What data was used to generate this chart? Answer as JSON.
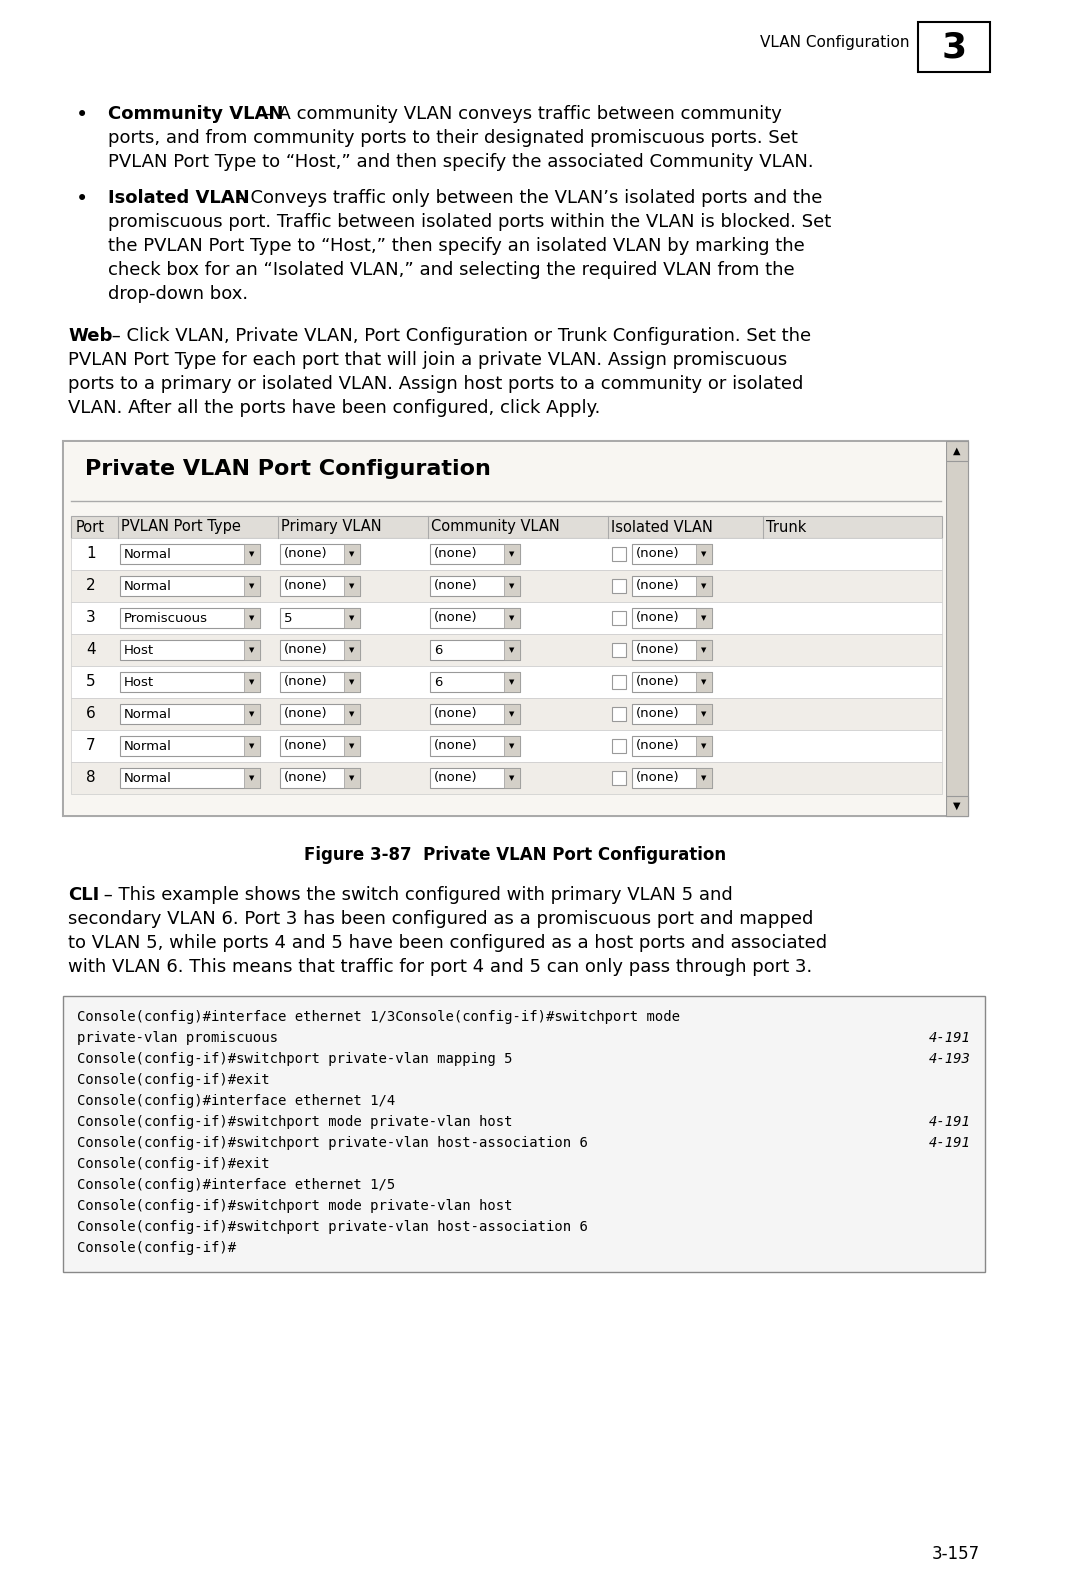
{
  "bg_color": "#ffffff",
  "header_text": "VLAN Configuration",
  "header_num": "3",
  "bullet1_bold": "Community VLAN",
  "bullet1_rest": " – A community VLAN conveys traffic between community",
  "bullet1_line2": "ports, and from community ports to their designated promiscuous ports. Set",
  "bullet1_line3": "PVLAN Port Type to “Host,” and then specify the associated Community VLAN.",
  "bullet2_bold": "Isolated VLAN",
  "bullet2_rest": " – Conveys traffic only between the VLAN’s isolated ports and the",
  "bullet2_line2": "promiscuous port. Traffic between isolated ports within the VLAN is blocked. Set",
  "bullet2_line3": "the PVLAN Port Type to “Host,” then specify an isolated VLAN by marking the",
  "bullet2_line4": "check box for an “Isolated VLAN,” and selecting the required VLAN from the",
  "bullet2_line5": "drop-down box.",
  "web_bold": "Web",
  "web_line1": " – Click VLAN, Private VLAN, Port Configuration or Trunk Configuration. Set the",
  "web_line2": "PVLAN Port Type for each port that will join a private VLAN. Assign promiscuous",
  "web_line3": "ports to a primary or isolated VLAN. Assign host ports to a community or isolated",
  "web_line4": "VLAN. After all the ports have been configured, click Apply.",
  "table_title": "Private VLAN Port Configuration",
  "table_headers": [
    "Port",
    "PVLAN Port Type",
    "Primary VLAN",
    "Community VLAN",
    "Isolated VLAN",
    "Trunk"
  ],
  "table_rows": [
    {
      "port": "1",
      "pvlan_type": "Normal",
      "primary": "(none)",
      "community": "(none)",
      "isolated": "(none)"
    },
    {
      "port": "2",
      "pvlan_type": "Normal",
      "primary": "(none)",
      "community": "(none)",
      "isolated": "(none)"
    },
    {
      "port": "3",
      "pvlan_type": "Promiscuous",
      "primary": "5",
      "community": "(none)",
      "isolated": "(none)"
    },
    {
      "port": "4",
      "pvlan_type": "Host",
      "primary": "(none)",
      "community": "6",
      "isolated": "(none)"
    },
    {
      "port": "5",
      "pvlan_type": "Host",
      "primary": "(none)",
      "community": "6",
      "isolated": "(none)"
    },
    {
      "port": "6",
      "pvlan_type": "Normal",
      "primary": "(none)",
      "community": "(none)",
      "isolated": "(none)"
    },
    {
      "port": "7",
      "pvlan_type": "Normal",
      "primary": "(none)",
      "community": "(none)",
      "isolated": "(none)"
    },
    {
      "port": "8",
      "pvlan_type": "Normal",
      "primary": "(none)",
      "community": "(none)",
      "isolated": "(none)"
    }
  ],
  "fig_caption": "Figure 3-87  Private VLAN Port Configuration",
  "cli_bold": "CLI",
  "cli_line1": " – This example shows the switch configured with primary VLAN 5 and",
  "cli_line2": "secondary VLAN 6. Port 3 has been configured as a promiscuous port and mapped",
  "cli_line3": "to VLAN 5, while ports 4 and 5 have been configured as a host ports and associated",
  "cli_line4": "with VLAN 6. This means that traffic for port 4 and 5 can only pass through port 3.",
  "code_lines": [
    {
      "text": "Console(config)#interface ethernet 1/3Console(config-if)#switchport mode",
      "ref": ""
    },
    {
      "text": "private-vlan promiscuous",
      "ref": "4-191"
    },
    {
      "text": "Console(config-if)#switchport private-vlan mapping 5",
      "ref": "4-193"
    },
    {
      "text": "Console(config-if)#exit",
      "ref": ""
    },
    {
      "text": "Console(config)#interface ethernet 1/4",
      "ref": ""
    },
    {
      "text": "Console(config-if)#switchport mode private-vlan host",
      "ref": "4-191"
    },
    {
      "text": "Console(config-if)#switchport private-vlan host-association 6",
      "ref": "4-191"
    },
    {
      "text": "Console(config-if)#exit",
      "ref": ""
    },
    {
      "text": "Console(config)#interface ethernet 1/5",
      "ref": ""
    },
    {
      "text": "Console(config-if)#switchport mode private-vlan host",
      "ref": ""
    },
    {
      "text": "Console(config-if)#switchport private-vlan host-association 6",
      "ref": ""
    },
    {
      "text": "Console(config-if)#",
      "ref": ""
    }
  ],
  "page_num": "3-157"
}
